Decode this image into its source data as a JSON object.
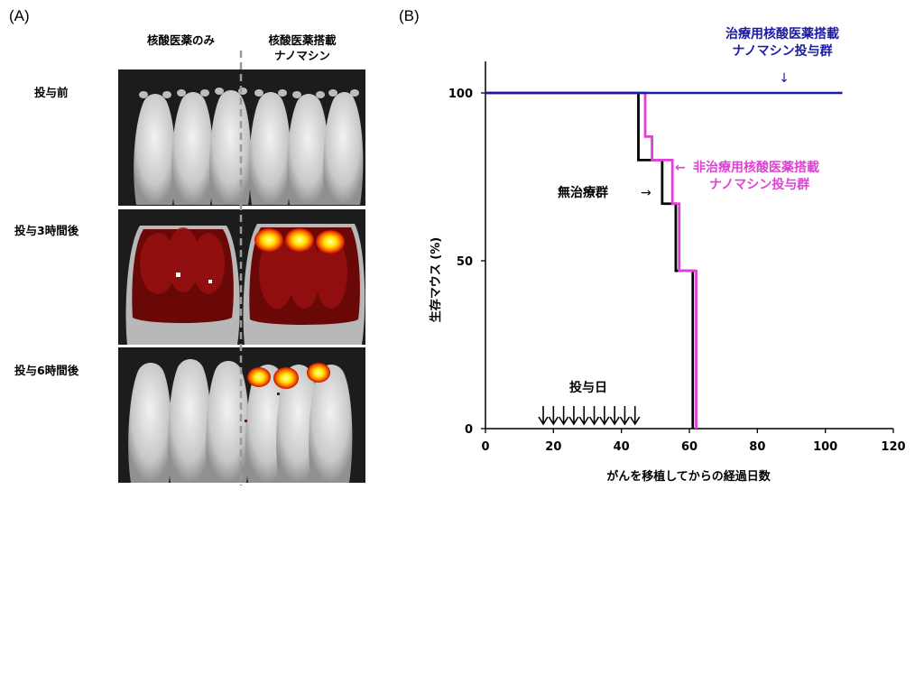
{
  "panelA": {
    "letter": "(A)",
    "col_headers": [
      {
        "lines": [
          "核酸医薬のみ"
        ]
      },
      {
        "lines": [
          "核酸医薬搭載",
          "ナノマシン"
        ]
      }
    ],
    "rows": [
      {
        "label": "投与前",
        "state": "none"
      },
      {
        "label": "投与3時間後",
        "state": "3h"
      },
      {
        "label": "投与6時間後",
        "state": "6h"
      }
    ],
    "colors": {
      "signal_low": "#7a0a0a",
      "signal_high": "#ffff30",
      "background": "#1c1c1c"
    }
  },
  "chart_data": {
    "type": "line",
    "letter": "(B)",
    "xlabel": "がんを移植してからの経過日数",
    "ylabel": "生存マウス (%)",
    "xlim": [
      0,
      120
    ],
    "ylim": [
      0,
      100
    ],
    "xticks": [
      0,
      20,
      40,
      60,
      80,
      100,
      120
    ],
    "yticks": [
      0,
      50,
      100
    ],
    "grid": false,
    "step": true,
    "series": [
      {
        "name": "治療用核酸医薬搭載ナノマシン投与群",
        "label_lines": [
          "治療用核酸医薬搭載",
          "ナノマシン投与群"
        ],
        "arrow": "↓",
        "color": "#1a1aa8",
        "x": [
          0,
          105
        ],
        "y": [
          100,
          100
        ]
      },
      {
        "name": "非治療用核酸医薬搭載ナノマシン投与群",
        "label_lines": [
          "非治療用核酸医薬搭載",
          "ナノマシン投与群"
        ],
        "arrow": "←",
        "color": "#e040d8",
        "x": [
          0,
          47,
          49,
          55,
          57,
          62,
          62
        ],
        "y": [
          100,
          87,
          80,
          67,
          47,
          13,
          0
        ]
      },
      {
        "name": "無治療群",
        "label_lines": [
          "無治療群"
        ],
        "arrow": "→",
        "color": "#000000",
        "x": [
          0,
          45,
          52,
          56,
          61,
          61
        ],
        "y": [
          100,
          80,
          67,
          47,
          27,
          0
        ]
      }
    ],
    "dosing": {
      "label": "投与日",
      "days": [
        17,
        20,
        23,
        26,
        29,
        32,
        35,
        38,
        41,
        44
      ]
    }
  }
}
